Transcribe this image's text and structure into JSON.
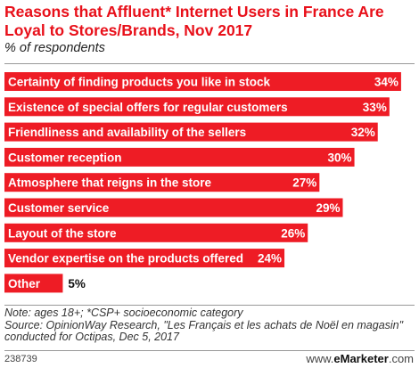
{
  "header": {
    "title": "Reasons that Affluent* Internet Users in France Are Loyal to Stores/Brands, Nov 2017",
    "subtitle": "% of respondents"
  },
  "chart_data": {
    "type": "bar",
    "orientation": "horizontal",
    "title": "Reasons that Affluent* Internet Users in France Are Loyal to Stores/Brands, Nov 2017",
    "subtitle": "% of respondents",
    "categories": [
      "Certainty of finding products you like in stock",
      "Existence of special offers for regular customers",
      "Friendliness and availability of the sellers",
      "Customer reception",
      "Atmosphere that reigns in the store",
      "Customer service",
      "Layout of the store",
      "Vendor expertise on the products offered",
      "Other"
    ],
    "values": [
      34,
      33,
      32,
      30,
      27,
      29,
      26,
      24,
      5
    ],
    "value_labels": [
      "34%",
      "33%",
      "32%",
      "30%",
      "27%",
      "29%",
      "26%",
      "24%",
      "5%"
    ],
    "xlim": [
      0,
      35
    ],
    "grid": false,
    "colors": {
      "bar": "#ee1c25"
    }
  },
  "notes": {
    "line1": "Note: ages 18+; *CSP+ socioeconomic category",
    "line2": "Source: OpinionWay Research, \"Les Français et les achats de Noël en magasin\" conducted for Octipas, Dec 5, 2017"
  },
  "footer": {
    "chart_id": "238739",
    "brand_prefix": "www.",
    "brand_name": "eMarketer",
    "brand_suffix": ".com"
  }
}
